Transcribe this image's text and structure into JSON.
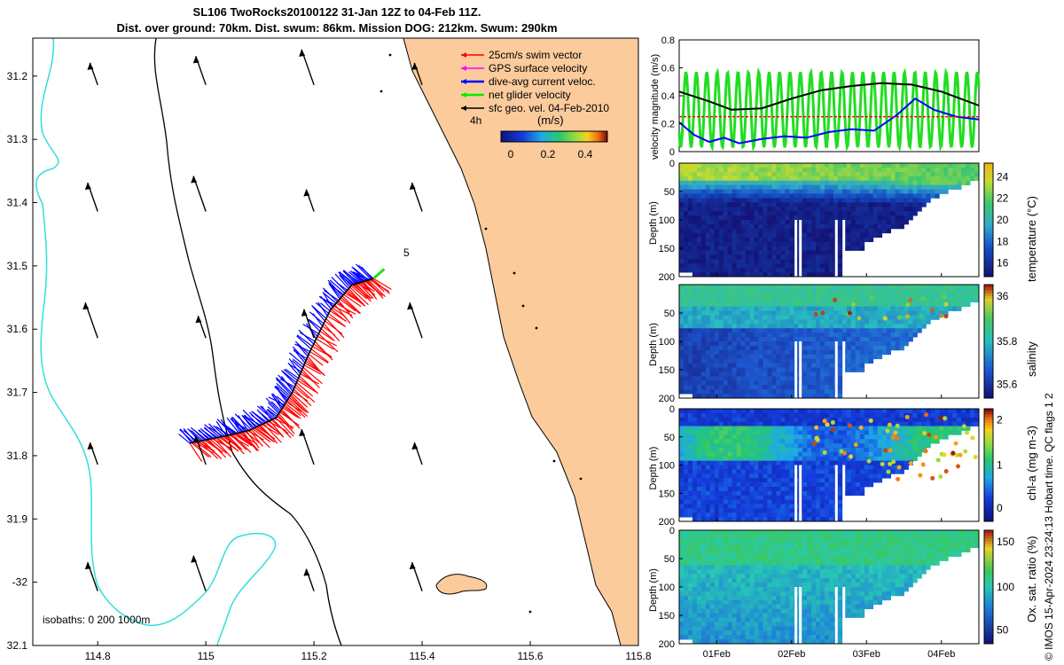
{
  "header": {
    "line1": "SL106 TwoRocks20100122 31-Jan 12Z to 04-Feb 11Z.",
    "line2": "Dist. over ground: 70km. Dist. swum: 86km. Mission DOG: 212km. Swum: 290km"
  },
  "map": {
    "legend": [
      "25cm/s swim vector",
      "GPS surface velocity",
      "dive-avg current veloc.",
      "net glider velocity",
      "sfc geo. vel. 04-Feb-2010"
    ],
    "legend_colors": [
      "#ff0000",
      "#ff00ff",
      "#0000ff",
      "#00ee00",
      "#000000"
    ],
    "timestep_label": "4h",
    "scale_label": "(m/s)",
    "colorbar_ticks": [
      "0",
      "0.2",
      "0.4"
    ],
    "isobaths_label": "isobaths: 0   200  1000m",
    "marker_5": "5",
    "land_color": "#fbcb9c",
    "isobath_200_color": "#000000",
    "isobath_1000_color": "#33dddd"
  },
  "chart_data": [
    {
      "type": "map",
      "xlim": [
        114.68,
        115.8
      ],
      "ylim": [
        -32.1,
        -31.14
      ],
      "x_ticks": [
        114.8,
        115,
        115.2,
        115.4,
        115.6,
        115.8
      ],
      "x_tick_labels": [
        "114.8",
        "115",
        "115.2",
        "115.4",
        "115.6",
        "115.8"
      ],
      "y_ticks": [
        -31.2,
        -31.3,
        -31.4,
        -31.5,
        -31.6,
        -31.7,
        -31.8,
        -31.9,
        -32,
        -32.1
      ],
      "y_tick_labels": [
        "31.2",
        "31.3",
        "31.4",
        "31.5",
        "31.6",
        "31.7",
        "31.8",
        "31.9",
        "-32",
        "32.1"
      ],
      "glider_track": [
        [
          114.97,
          -31.78
        ],
        [
          115.03,
          -31.77
        ],
        [
          115.08,
          -31.76
        ],
        [
          115.13,
          -31.74
        ],
        [
          115.16,
          -31.7
        ],
        [
          115.19,
          -31.64
        ],
        [
          115.23,
          -31.57
        ],
        [
          115.27,
          -31.53
        ],
        [
          115.31,
          -31.52
        ]
      ],
      "current_arrow_grid": {
        "lons": [
          114.8,
          115.0,
          115.2,
          115.4
        ],
        "lats": [
          -31.2,
          -31.4,
          -31.6,
          -31.8,
          -32.0
        ]
      }
    },
    {
      "type": "line",
      "ylabel": "velocity magnitude (m/s)",
      "ylim": [
        0,
        0.8
      ],
      "y_ticks": [
        "0",
        "0.2",
        "0.4",
        "0.6",
        "0.8"
      ],
      "xlim_days": [
        0.5,
        4.5
      ],
      "series": [
        {
          "name": "net glider velocity",
          "color": "#22dd22",
          "oscillating": true,
          "min": 0.03,
          "max": 0.57
        },
        {
          "name": "sfc geo. vel.",
          "color": "#000000",
          "x": [
            0.5,
            0.9,
            1.2,
            1.6,
            2.0,
            2.4,
            2.8,
            3.2,
            3.6,
            4.0,
            4.5
          ],
          "values": [
            0.43,
            0.36,
            0.3,
            0.31,
            0.38,
            0.44,
            0.47,
            0.49,
            0.48,
            0.43,
            0.33
          ]
        },
        {
          "name": "dive-avg current veloc.",
          "color": "#0000ff",
          "x": [
            0.5,
            0.7,
            0.9,
            1.1,
            1.3,
            1.6,
            1.9,
            2.2,
            2.5,
            2.8,
            3.1,
            3.4,
            3.65,
            3.9,
            4.2,
            4.5
          ],
          "values": [
            0.21,
            0.12,
            0.07,
            0.1,
            0.06,
            0.09,
            0.11,
            0.1,
            0.14,
            0.16,
            0.15,
            0.26,
            0.38,
            0.3,
            0.25,
            0.23
          ]
        },
        {
          "name": "25cm/s swim vector",
          "color": "#ff0000",
          "x": [
            0.5,
            4.5
          ],
          "values": [
            0.25,
            0.25
          ]
        }
      ]
    },
    {
      "type": "heatmap",
      "variable": "temperature",
      "cbar_label": "temperature (°C)",
      "cbar_ticks": [
        "24",
        "22",
        "20",
        "18",
        "16"
      ],
      "ylabel": "Depth (m)",
      "y_ticks": [
        "0",
        "50",
        "100",
        "150",
        "200"
      ],
      "range": [
        15,
        25
      ]
    },
    {
      "type": "heatmap",
      "variable": "salinity",
      "cbar_label": "salinity",
      "cbar_ticks": [
        "36",
        "35.8",
        "35.6"
      ],
      "ylabel": "Depth (m)",
      "y_ticks": [
        "50",
        "100",
        "150",
        "200"
      ],
      "range": [
        35.45,
        36.1
      ]
    },
    {
      "type": "heatmap",
      "variable": "chlorophyll-a",
      "cbar_label": "chl-a (mg m-3)",
      "cbar_ticks": [
        "2",
        "1",
        "0"
      ],
      "ylabel": "Depth (m)",
      "y_ticks": [
        "0",
        "50",
        "100",
        "150",
        "200"
      ],
      "range": [
        0,
        2
      ]
    },
    {
      "type": "heatmap",
      "variable": "oxygen saturation",
      "cbar_label": "Ox. sat. ratio (%)",
      "cbar_ticks": [
        "150",
        "100",
        "50"
      ],
      "ylabel": "Depth (m)",
      "y_ticks": [
        "0",
        "50",
        "100",
        "150",
        "200"
      ],
      "x_tick_labels": [
        "01Feb",
        "02Feb",
        "03Feb",
        "04Feb"
      ],
      "range": [
        20,
        170
      ]
    }
  ],
  "footer": {
    "vertical_credit": "© IMOS 15-Apr-2024 23:24:13 Hobart time. QC flags 1  2"
  }
}
